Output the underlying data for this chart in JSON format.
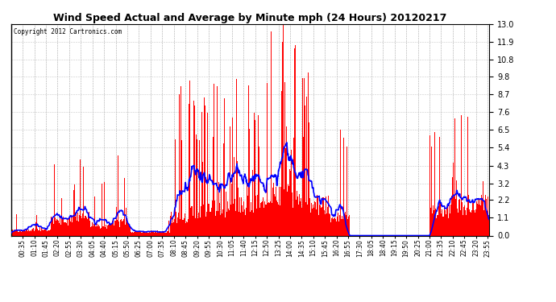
{
  "title": "Wind Speed Actual and Average by Minute mph (24 Hours) 20120217",
  "copyright": "Copyright 2012 Cartronics.com",
  "bar_color": "#ff0000",
  "line_color": "#0000ff",
  "bg_color": "#ffffff",
  "grid_color": "#bbbbbb",
  "yticks": [
    0.0,
    1.1,
    2.2,
    3.2,
    4.3,
    5.4,
    6.5,
    7.6,
    8.7,
    9.8,
    10.8,
    11.9,
    13.0
  ],
  "ymin": 0.0,
  "ymax": 13.0,
  "xtick_labels": [
    "00:35",
    "01:10",
    "01:45",
    "02:20",
    "02:55",
    "03:30",
    "04:05",
    "04:40",
    "05:15",
    "05:50",
    "06:25",
    "07:00",
    "07:35",
    "08:10",
    "08:45",
    "09:20",
    "09:55",
    "10:30",
    "11:05",
    "11:40",
    "12:15",
    "12:50",
    "13:25",
    "14:00",
    "14:35",
    "15:10",
    "15:45",
    "16:20",
    "16:55",
    "17:30",
    "18:05",
    "18:40",
    "19:15",
    "19:50",
    "20:25",
    "21:00",
    "21:35",
    "22:10",
    "22:45",
    "23:20",
    "23:55"
  ],
  "seed": 12345
}
